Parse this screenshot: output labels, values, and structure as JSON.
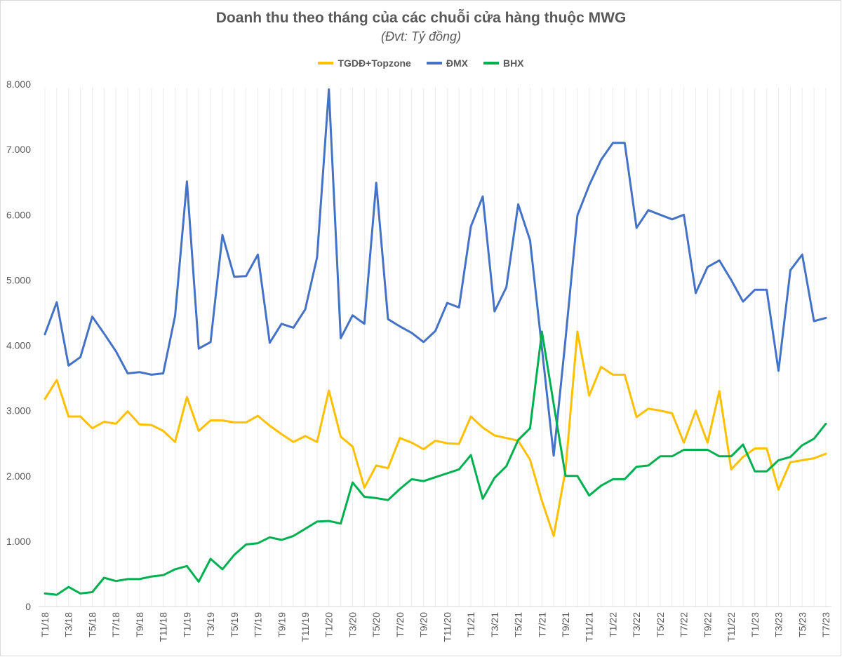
{
  "chart_data": {
    "type": "line",
    "title": "Doanh thu theo tháng của các chuỗi cửa hàng thuộc MWG",
    "subtitle": "(Đvt: Tỷ đồng)",
    "xlabel": "",
    "ylabel": "",
    "ylim": [
      0,
      8000
    ],
    "yticks": [
      "0",
      "1.000",
      "2.000",
      "3.000",
      "4.000",
      "5.000",
      "6.000",
      "7.000",
      "8.000"
    ],
    "ytick_values": [
      0,
      1000,
      2000,
      3000,
      4000,
      5000,
      6000,
      7000,
      8000
    ],
    "legend_position": "top",
    "grid": "vertical light gridlines",
    "categories": [
      "T1/18",
      "T2/18",
      "T3/18",
      "T4/18",
      "T5/18",
      "T6/18",
      "T7/18",
      "T8/18",
      "T9/18",
      "T10/18",
      "T11/18",
      "T12/18",
      "T1/19",
      "T2/19",
      "T3/19",
      "T4/19",
      "T5/19",
      "T6/19",
      "T7/19",
      "T8/19",
      "T9/19",
      "T10/19",
      "T11/19",
      "T12/19",
      "T1/20",
      "T2/20",
      "T3/20",
      "T4/20",
      "T5/20",
      "T6/20",
      "T7/20",
      "T8/20",
      "T9/20",
      "T10/20",
      "T11/20",
      "T12/20",
      "T1/21",
      "T2/21",
      "T3/21",
      "T4/21",
      "T5/21",
      "T6/21",
      "T7/21",
      "T8/21",
      "T9/21",
      "T10/21",
      "T11/21",
      "T12/21",
      "T1/22",
      "T2/22",
      "T3/22",
      "T4/22",
      "T5/22",
      "T6/22",
      "T7/22",
      "T8/22",
      "T9/22",
      "T10/22",
      "T11/22",
      "T12/22",
      "T1/23",
      "T2/23",
      "T3/23",
      "T4/23",
      "T5/23",
      "T6/23",
      "T7/23"
    ],
    "series": [
      {
        "name": "TGDĐ+Topzone",
        "color": "#FFC000",
        "values": [
          3180,
          3470,
          2910,
          2910,
          2730,
          2830,
          2800,
          2990,
          2790,
          2780,
          2690,
          2520,
          3210,
          2690,
          2850,
          2850,
          2820,
          2820,
          2920,
          2770,
          2640,
          2520,
          2610,
          2520,
          3310,
          2600,
          2450,
          1820,
          2160,
          2120,
          2580,
          2510,
          2410,
          2540,
          2500,
          2490,
          2910,
          2740,
          2620,
          2580,
          2540,
          2250,
          1620,
          1080,
          2090,
          4210,
          3230,
          3670,
          3550,
          3550,
          2900,
          3030,
          3000,
          2960,
          2510,
          3000,
          2510,
          3300,
          2100,
          2290,
          2420,
          2420,
          1790,
          2210,
          2240,
          2270,
          2340
        ]
      },
      {
        "name": "ĐMX",
        "color": "#4472C4",
        "values": [
          4170,
          4660,
          3690,
          3820,
          4440,
          4180,
          3910,
          3570,
          3590,
          3550,
          3570,
          4450,
          6510,
          3950,
          4050,
          5690,
          5050,
          5060,
          5390,
          4040,
          4330,
          4270,
          4550,
          5350,
          7920,
          4110,
          4460,
          4330,
          6490,
          4400,
          4290,
          4190,
          4050,
          4220,
          4650,
          4580,
          5820,
          6280,
          4520,
          4890,
          6160,
          5610,
          3960,
          2310,
          4100,
          5990,
          6450,
          6840,
          7100,
          7100,
          5800,
          6070,
          6000,
          5930,
          6000,
          4800,
          5200,
          5300,
          5000,
          4670,
          4850,
          4850,
          3610,
          5150,
          5390,
          4370,
          4420
        ]
      },
      {
        "name": "BHX",
        "color": "#00B050",
        "values": [
          200,
          180,
          300,
          200,
          220,
          440,
          390,
          420,
          420,
          460,
          480,
          570,
          620,
          380,
          730,
          570,
          790,
          950,
          970,
          1060,
          1020,
          1080,
          1190,
          1300,
          1310,
          1270,
          1900,
          1680,
          1660,
          1630,
          1800,
          1950,
          1920,
          1980,
          2040,
          2100,
          2320,
          1650,
          1970,
          2150,
          2550,
          2730,
          4210,
          3100,
          2000,
          2000,
          1700,
          1850,
          1950,
          1950,
          2140,
          2160,
          2300,
          2300,
          2400,
          2400,
          2400,
          2300,
          2300,
          2480,
          2070,
          2070,
          2240,
          2290,
          2470,
          2570,
          2800
        ]
      }
    ]
  }
}
